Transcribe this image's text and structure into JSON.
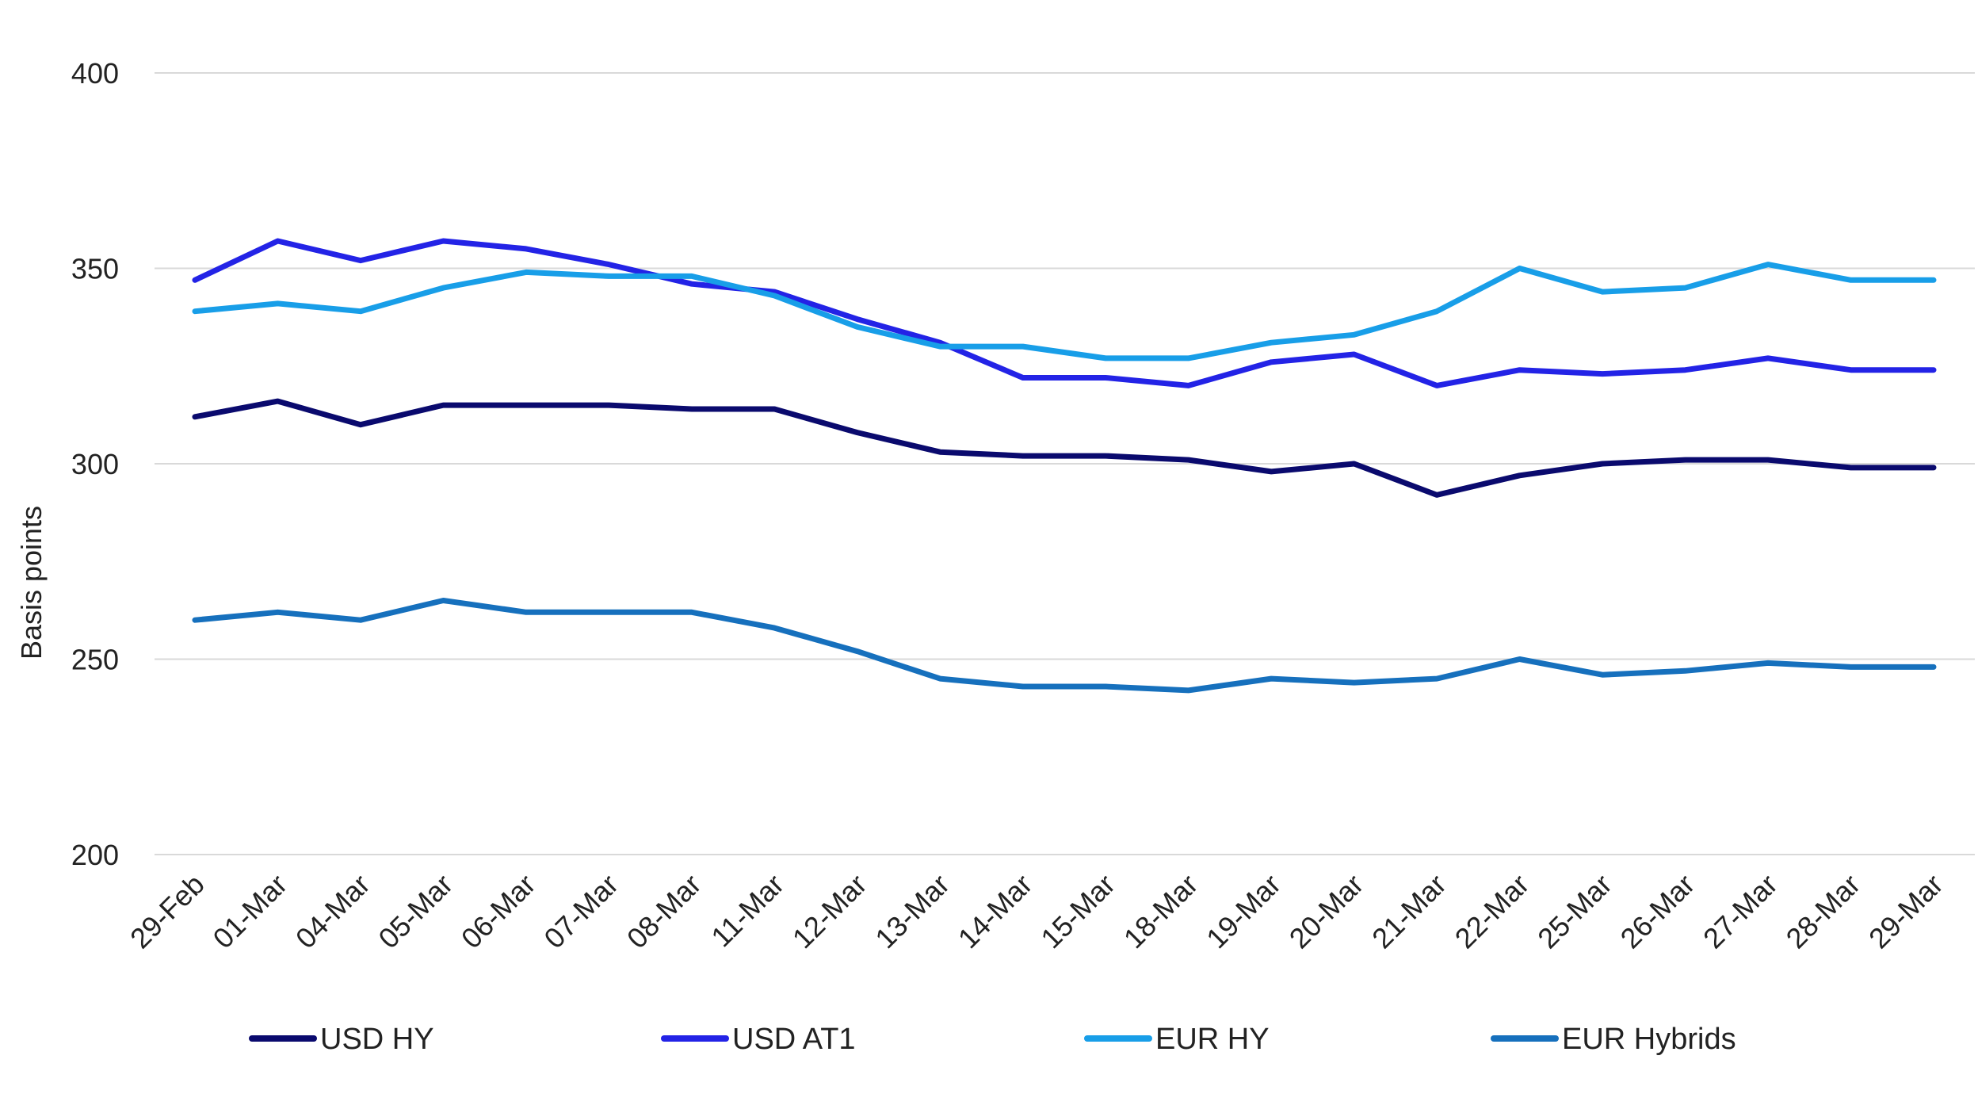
{
  "chart_data": {
    "type": "line",
    "title": "",
    "xlabel": "",
    "ylabel": "Basis points",
    "ylim": [
      200,
      400
    ],
    "yticks": [
      "200",
      "250",
      "300",
      "350",
      "400"
    ],
    "grid": true,
    "legend_position": "bottom",
    "categories": [
      "29-Feb",
      "01-Mar",
      "04-Mar",
      "05-Mar",
      "06-Mar",
      "07-Mar",
      "08-Mar",
      "11-Mar",
      "12-Mar",
      "13-Mar",
      "14-Mar",
      "15-Mar",
      "18-Mar",
      "19-Mar",
      "20-Mar",
      "21-Mar",
      "22-Mar",
      "25-Mar",
      "26-Mar",
      "27-Mar",
      "28-Mar",
      "29-Mar"
    ],
    "series": [
      {
        "name": "USD HY",
        "color": "#0a0a6e",
        "values": [
          312,
          316,
          310,
          315,
          315,
          315,
          314,
          314,
          308,
          303,
          302,
          302,
          301,
          298,
          300,
          292,
          297,
          300,
          301,
          301,
          299,
          299
        ]
      },
      {
        "name": "USD AT1",
        "color": "#2323e6",
        "values": [
          347,
          357,
          352,
          357,
          355,
          351,
          346,
          344,
          337,
          331,
          322,
          322,
          320,
          326,
          328,
          320,
          324,
          323,
          324,
          327,
          324,
          324
        ]
      },
      {
        "name": "EUR HY",
        "color": "#189ee8",
        "values": [
          339,
          341,
          339,
          345,
          349,
          348,
          348,
          343,
          335,
          330,
          330,
          327,
          327,
          331,
          333,
          339,
          350,
          344,
          345,
          351,
          347,
          347
        ]
      },
      {
        "name": "EUR Hybrids",
        "color": "#1670bd",
        "values": [
          260,
          262,
          260,
          265,
          262,
          262,
          262,
          258,
          252,
          245,
          243,
          243,
          242,
          245,
          244,
          245,
          250,
          246,
          247,
          249,
          248,
          248
        ]
      }
    ]
  }
}
